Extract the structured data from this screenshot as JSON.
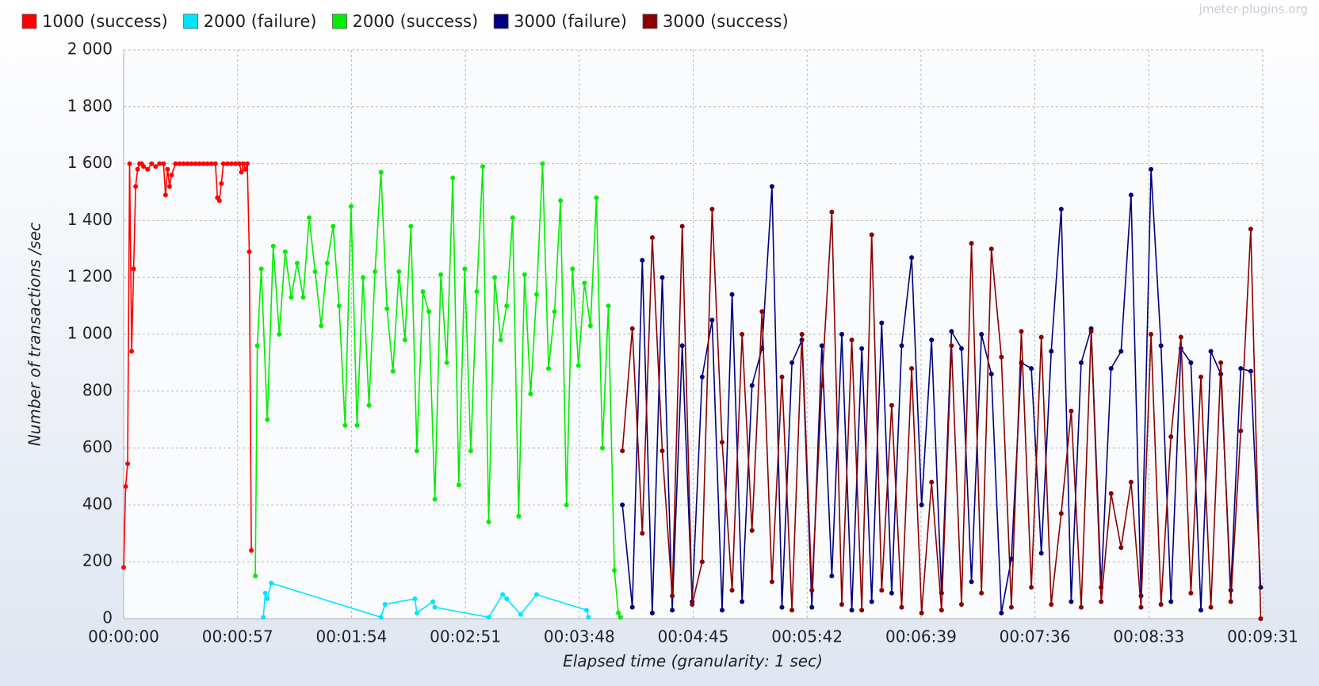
{
  "chart_data": {
    "type": "line",
    "x_label": "Elapsed time (granularity: 1 sec)",
    "y_label": "Number of transactions /sec",
    "watermark": "jmeter-plugins.org",
    "xlim": [
      0,
      571
    ],
    "ylim": [
      0,
      2000
    ],
    "xticks": [
      {
        "value": 0,
        "label": "00:00:00"
      },
      {
        "value": 57.1,
        "label": "00:00:57"
      },
      {
        "value": 114.2,
        "label": "00:01:54"
      },
      {
        "value": 171.3,
        "label": "00:02:51"
      },
      {
        "value": 228.4,
        "label": "00:03:48"
      },
      {
        "value": 285.5,
        "label": "00:04:45"
      },
      {
        "value": 342.6,
        "label": "00:05:42"
      },
      {
        "value": 399.7,
        "label": "00:06:39"
      },
      {
        "value": 456.8,
        "label": "00:07:36"
      },
      {
        "value": 513.9,
        "label": "00:08:33"
      },
      {
        "value": 571,
        "label": "00:09:31"
      }
    ],
    "yticks": [
      0,
      200,
      400,
      600,
      800,
      {
        "value": 1000,
        "label": "1 000"
      },
      {
        "value": 1200,
        "label": "1 200"
      },
      {
        "value": 1400,
        "label": "1 400"
      },
      {
        "value": 1600,
        "label": "1 600"
      },
      {
        "value": 1800,
        "label": "1 800"
      },
      {
        "value": 2000,
        "label": "2 000"
      }
    ],
    "grid": true,
    "legend": "top",
    "series": [
      {
        "name": "1000 (success)",
        "color": "#ff0000",
        "x": [
          0,
          1,
          2,
          3,
          4,
          5,
          6,
          7,
          8,
          9,
          10,
          12,
          14,
          16,
          18,
          20,
          21,
          22,
          23,
          24,
          26,
          28,
          30,
          32,
          34,
          36,
          38,
          40,
          42,
          44,
          46,
          47,
          48,
          49,
          50,
          52,
          54,
          56,
          58,
          59,
          60,
          61,
          62,
          63,
          64
        ],
        "values": [
          180,
          465,
          545,
          1600,
          940,
          1230,
          1520,
          1580,
          1600,
          1600,
          1590,
          1580,
          1600,
          1590,
          1600,
          1600,
          1490,
          1580,
          1520,
          1560,
          1600,
          1600,
          1600,
          1600,
          1600,
          1600,
          1600,
          1600,
          1600,
          1600,
          1600,
          1480,
          1470,
          1530,
          1600,
          1600,
          1600,
          1600,
          1600,
          1570,
          1600,
          1580,
          1600,
          1290,
          240
        ]
      },
      {
        "name": "2000 (failure)",
        "color": "#00e5ff",
        "x": [
          70,
          71,
          72,
          74,
          129,
          131,
          146,
          147,
          155,
          156,
          183,
          190,
          192,
          199,
          207,
          232,
          233
        ],
        "values": [
          5,
          90,
          70,
          125,
          5,
          50,
          70,
          20,
          60,
          40,
          5,
          85,
          70,
          15,
          85,
          30,
          5
        ]
      },
      {
        "name": "2000 (success)",
        "color": "#00ee00",
        "x": [
          66,
          67,
          69,
          72,
          75,
          78,
          81,
          84,
          87,
          90,
          93,
          96,
          99,
          102,
          105,
          108,
          111,
          114,
          117,
          120,
          123,
          126,
          129,
          132,
          135,
          138,
          141,
          144,
          147,
          150,
          153,
          156,
          159,
          162,
          165,
          168,
          171,
          174,
          177,
          180,
          183,
          186,
          189,
          192,
          195,
          198,
          201,
          204,
          207,
          210,
          213,
          216,
          219,
          222,
          225,
          228,
          231,
          234,
          237,
          240,
          243,
          246,
          248,
          249
        ],
        "values": [
          150,
          960,
          1230,
          700,
          1310,
          1000,
          1290,
          1130,
          1250,
          1130,
          1410,
          1220,
          1030,
          1250,
          1380,
          1100,
          680,
          1450,
          680,
          1200,
          750,
          1220,
          1570,
          1090,
          870,
          1220,
          980,
          1380,
          590,
          1150,
          1080,
          420,
          1210,
          900,
          1550,
          470,
          1230,
          590,
          1150,
          1590,
          340,
          1200,
          980,
          1100,
          1410,
          360,
          1210,
          790,
          1140,
          1600,
          880,
          1080,
          1470,
          400,
          1230,
          890,
          1180,
          1030,
          1480,
          600,
          1100,
          170,
          20,
          5
        ]
      },
      {
        "name": "3000 (failure)",
        "color": "#000080",
        "x": [
          250,
          255,
          260,
          265,
          270,
          275,
          280,
          285,
          290,
          295,
          300,
          305,
          310,
          315,
          320,
          325,
          330,
          335,
          340,
          345,
          350,
          355,
          360,
          365,
          370,
          375,
          380,
          385,
          390,
          395,
          400,
          405,
          410,
          415,
          420,
          425,
          430,
          435,
          440,
          445,
          450,
          455,
          460,
          465,
          470,
          475,
          480,
          485,
          490,
          495,
          500,
          505,
          510,
          515,
          520,
          525,
          530,
          535,
          540,
          545,
          550,
          555,
          560,
          565,
          570
        ],
        "values": [
          400,
          40,
          1260,
          20,
          1200,
          30,
          960,
          60,
          850,
          1050,
          30,
          1140,
          60,
          820,
          950,
          1520,
          40,
          900,
          980,
          40,
          960,
          150,
          1000,
          30,
          950,
          60,
          1040,
          90,
          960,
          1270,
          400,
          980,
          90,
          1010,
          950,
          130,
          1000,
          860,
          20,
          210,
          900,
          880,
          230,
          940,
          1440,
          60,
          900,
          1020,
          110,
          880,
          940,
          1490,
          80,
          1580,
          960,
          60,
          950,
          900,
          30,
          940,
          860,
          100,
          880,
          870,
          110
        ]
      },
      {
        "name": "3000 (success)",
        "color": "#8b0000",
        "x": [
          250,
          255,
          260,
          265,
          270,
          275,
          280,
          285,
          290,
          295,
          300,
          305,
          310,
          315,
          320,
          325,
          330,
          335,
          340,
          345,
          350,
          355,
          360,
          365,
          370,
          375,
          380,
          385,
          390,
          395,
          400,
          405,
          410,
          415,
          420,
          425,
          430,
          435,
          440,
          445,
          450,
          455,
          460,
          465,
          470,
          475,
          480,
          485,
          490,
          495,
          500,
          505,
          510,
          515,
          520,
          525,
          530,
          535,
          540,
          545,
          550,
          555,
          560,
          565,
          570
        ],
        "values": [
          590,
          1020,
          300,
          1340,
          590,
          80,
          1380,
          50,
          200,
          1440,
          620,
          100,
          1000,
          310,
          1080,
          130,
          850,
          30,
          1000,
          100,
          820,
          1430,
          50,
          980,
          30,
          1350,
          100,
          750,
          40,
          880,
          20,
          480,
          30,
          960,
          50,
          1320,
          90,
          1300,
          920,
          40,
          1010,
          110,
          990,
          50,
          370,
          730,
          40,
          1010,
          60,
          440,
          250,
          480,
          40,
          1000,
          50,
          640,
          990,
          90,
          850,
          40,
          900,
          60,
          660,
          1370,
          0
        ]
      }
    ]
  }
}
